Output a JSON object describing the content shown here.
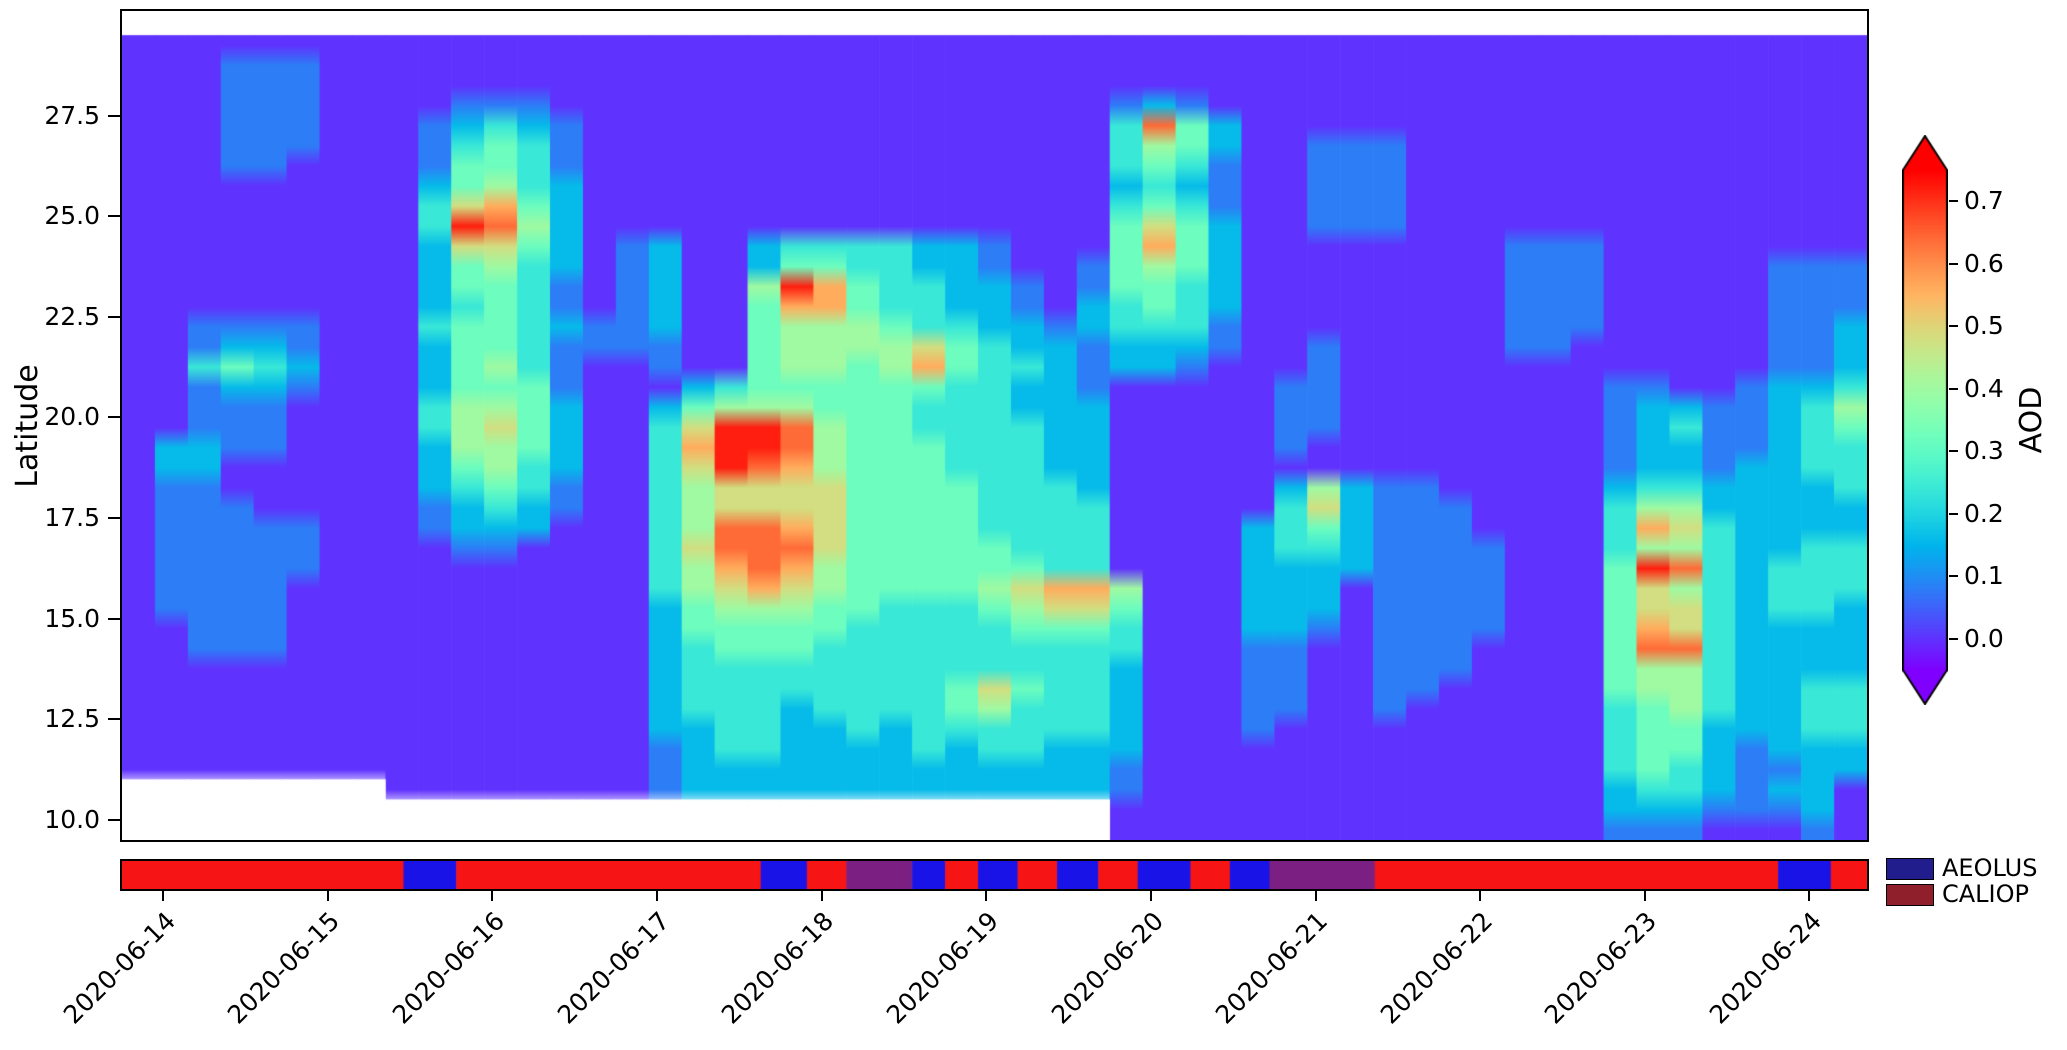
{
  "figure": {
    "ylabel": "Latitude",
    "colorbar_label": "AOD",
    "legend": {
      "aeolus_label": "AEOLUS",
      "caliop_label": "CALIOP",
      "aeolus_color": "#221d8c",
      "caliop_color": "#8f1f2a"
    }
  },
  "chart_data": {
    "type": "heatmap",
    "title": "",
    "xlabel": "",
    "ylabel": "Latitude",
    "colorbar": {
      "label": "AOD",
      "colormap": "rainbow",
      "extend": "both",
      "vmin": -0.05,
      "vmax": 0.75,
      "tick_values": [
        0.7,
        0.6,
        0.5,
        0.4,
        0.3,
        0.2,
        0.1,
        0.0
      ],
      "tick_labels": [
        "0.7",
        "0.6",
        "0.5",
        "0.4",
        "0.3",
        "0.2",
        "0.1",
        "0.0"
      ]
    },
    "x_axis": {
      "range_days": [
        13.75,
        24.35
      ],
      "tick_days": [
        14,
        15,
        16,
        17,
        18,
        19,
        20,
        21,
        22,
        23,
        24
      ],
      "tick_labels": [
        "2020-06-14",
        "2020-06-15",
        "2020-06-16",
        "2020-06-17",
        "2020-06-18",
        "2020-06-19",
        "2020-06-20",
        "2020-06-21",
        "2020-06-22",
        "2020-06-23",
        "2020-06-24"
      ]
    },
    "y_axis": {
      "range": [
        9.5,
        30.1
      ],
      "tick_values": [
        27.5,
        25.0,
        22.5,
        20.0,
        17.5,
        15.0,
        12.5,
        10.0
      ],
      "tick_labels": [
        "27.5",
        "25.0",
        "22.5",
        "20.0",
        "17.5",
        "15.0",
        "12.5",
        "10.0"
      ]
    },
    "grid": {
      "encoding": "each char is AOD/0.08 ; '.' means no data (white)",
      "lat_top": 29.5,
      "lat_step": 0.5,
      "day_start": 13.75,
      "day_step": 0.2,
      "value_step": 0.08,
      "no_data_char": ".",
      "rows": [
        "00000000000000000000000000000000000000000000000000000",
        "00011100000000000000000000000000000000000000000000000",
        "00011100000000000000000000000000000000000000000000000",
        "00011100001110000000000000000012100000000000000000000",
        "00011100012321000000000000000038420000000000000000000",
        "00011100013431000000000000000035420011100000000000000",
        "00011000014431000000000000000034310011100000000000000",
        "00000000024532000000000000000023210011100000000000000",
        "00000000036742000000000000000034310011100000000000000",
        "00000000039852000000000000000046420011100000000000000",
        "00000000026642012002333322100047420000000011100000000",
        "00000000024532012002443322100145420000000011100000111",
        "00000000024431012005974332210144320000000011100000111",
        "00000000023431012004774332210234320000000011100000111",
        "00111100034432112004555433221233310000000011100000112",
        "00122100024431111004555564322122210010000011000000112",
        "00343200024531001004554574332122100010000000000000112",
        "00122100024441000234444443322100000110000000011001223",
        "00111000035542002455544433322200000110000000012211235",
        "00111000035642003699854433332200000110000000012311234",
        "02211000025542003799854443332200000100000000012211233",
        "02200000024532003698754443332200000000000000012212233",
        "01100000023431003566664444333200000252110000023322223",
        "01110000012321003566664444333300000362111000035522222",
        "01111100012220003588764444333300002342111000037632222",
        "01111100001100003688864444433300002332111100035532233",
        "01111100000000003578754444443300002222111100049832333",
        "01111000000000003567654444567750002220111100046532333",
        "01111000000000002455544333456640002220111100046632332",
        "00111000000000002444443333344430002210111100047632222",
        "00111000000000002344433333333330001100111000048832222",
        "00000000000000002333333333333320001100111000045532222",
        "00000000000000002333333334643320001100110000045532233",
        "00000000000000002333233334533320001100100000034532233",
        "00000000000000002233223233333320001000000000034422233",
        "00000000000000001233222232332220000000000000034421222",
        "00000000000000001222222222222210000000000000034321122",
        "........00000000122222222222221000000000000002332122",
        "..............................000000000000000222111 2",
        "..............................000000000000000111000 1"
      ]
    },
    "instrument_strip": {
      "colors": {
        "CALIOP": "#f61414",
        "AEOLUS": "#1a13e8",
        "BOTH": "#7b2082"
      },
      "segments": [
        [
          13.75,
          15.46,
          "CALIOP"
        ],
        [
          15.46,
          15.78,
          "AEOLUS"
        ],
        [
          15.78,
          17.63,
          "CALIOP"
        ],
        [
          17.63,
          17.91,
          "AEOLUS"
        ],
        [
          17.91,
          18.15,
          "CALIOP"
        ],
        [
          18.15,
          18.55,
          "BOTH"
        ],
        [
          18.55,
          18.75,
          "AEOLUS"
        ],
        [
          18.75,
          18.95,
          "CALIOP"
        ],
        [
          18.95,
          19.19,
          "AEOLUS"
        ],
        [
          19.19,
          19.43,
          "CALIOP"
        ],
        [
          19.43,
          19.68,
          "AEOLUS"
        ],
        [
          19.68,
          19.92,
          "CALIOP"
        ],
        [
          19.92,
          20.24,
          "AEOLUS"
        ],
        [
          20.24,
          20.48,
          "CALIOP"
        ],
        [
          20.48,
          20.72,
          "AEOLUS"
        ],
        [
          20.72,
          21.36,
          "BOTH"
        ],
        [
          21.36,
          23.81,
          "CALIOP"
        ],
        [
          23.81,
          24.13,
          "AEOLUS"
        ],
        [
          24.13,
          24.35,
          "CALIOP"
        ]
      ]
    }
  }
}
